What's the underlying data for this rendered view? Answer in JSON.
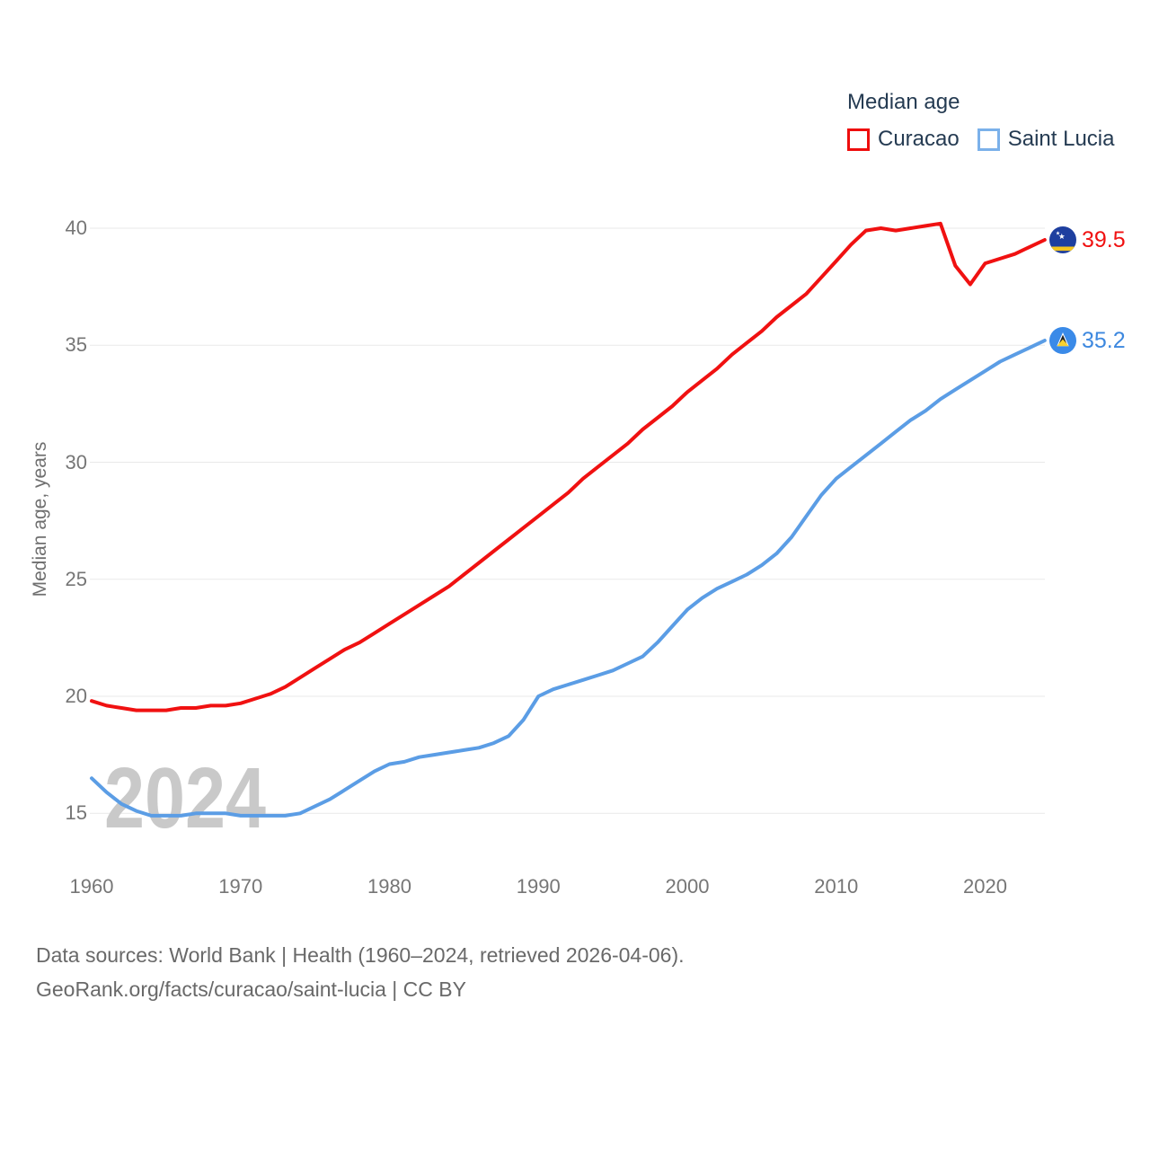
{
  "legend": {
    "title": "Median age",
    "items": [
      {
        "label": "Curacao"
      },
      {
        "label": "Saint Lucia"
      }
    ]
  },
  "watermark": "2024",
  "footer": {
    "line1": "Data sources: World Bank | Health (1960–2024, retrieved 2026-04-06).",
    "line2": "GeoRank.org/facts/curacao/saint-lucia | CC BY"
  },
  "colors": {
    "gridline": "#e9e9e9",
    "watermark": "#c9c9c9",
    "tick_text": "#767676",
    "axis_title_text": "#6f6f6f",
    "legend_text": "#253b52",
    "footer_text": "#696969"
  },
  "chart_data": {
    "type": "line",
    "title": "Median age",
    "xlabel": "",
    "ylabel": "Median age, years",
    "grid": "horizontal",
    "legend_position": "top-right",
    "xlim": [
      1960,
      2024
    ],
    "ylim": [
      15,
      40
    ],
    "yticks": [
      15,
      20,
      25,
      30,
      35,
      40
    ],
    "xticks": [
      1960,
      1970,
      1980,
      1990,
      2000,
      2010,
      2020
    ],
    "x": [
      1960,
      1961,
      1962,
      1963,
      1964,
      1965,
      1966,
      1967,
      1968,
      1969,
      1970,
      1971,
      1972,
      1973,
      1974,
      1975,
      1976,
      1977,
      1978,
      1979,
      1980,
      1981,
      1982,
      1983,
      1984,
      1985,
      1986,
      1987,
      1988,
      1989,
      1990,
      1991,
      1992,
      1993,
      1994,
      1995,
      1996,
      1997,
      1998,
      1999,
      2000,
      2001,
      2002,
      2003,
      2004,
      2005,
      2006,
      2007,
      2008,
      2009,
      2010,
      2011,
      2012,
      2013,
      2014,
      2015,
      2016,
      2017,
      2018,
      2019,
      2020,
      2021,
      2022,
      2023,
      2024
    ],
    "series": [
      {
        "name": "Curacao",
        "color": "#f01111",
        "swatch_color": "#ee0d0d",
        "label_color": "#f01111",
        "end_label": "39.5",
        "values": [
          19.8,
          19.6,
          19.5,
          19.4,
          19.4,
          19.4,
          19.5,
          19.5,
          19.6,
          19.6,
          19.7,
          19.9,
          20.1,
          20.4,
          20.8,
          21.2,
          21.6,
          22.0,
          22.3,
          22.7,
          23.1,
          23.5,
          23.9,
          24.3,
          24.7,
          25.2,
          25.7,
          26.2,
          26.7,
          27.2,
          27.7,
          28.2,
          28.7,
          29.3,
          29.8,
          30.3,
          30.8,
          31.4,
          31.9,
          32.4,
          33.0,
          33.5,
          34.0,
          34.6,
          35.1,
          35.6,
          36.2,
          36.7,
          37.2,
          37.9,
          38.6,
          39.3,
          39.9,
          40.0,
          39.9,
          40.0,
          40.1,
          40.2,
          38.4,
          37.6,
          38.5,
          38.7,
          38.9,
          39.2,
          39.5
        ]
      },
      {
        "name": "Saint Lucia",
        "color": "#5b9de5",
        "swatch_color": "#7bb1ea",
        "label_color": "#3d88df",
        "end_label": "35.2",
        "values": [
          16.5,
          15.9,
          15.4,
          15.1,
          14.9,
          14.9,
          14.9,
          15.0,
          15.0,
          15.0,
          14.9,
          14.9,
          14.9,
          14.9,
          15.0,
          15.3,
          15.6,
          16.0,
          16.4,
          16.8,
          17.1,
          17.2,
          17.4,
          17.5,
          17.6,
          17.7,
          17.8,
          18.0,
          18.3,
          19.0,
          20.0,
          20.3,
          20.5,
          20.7,
          20.9,
          21.1,
          21.4,
          21.7,
          22.3,
          23.0,
          23.7,
          24.2,
          24.6,
          24.9,
          25.2,
          25.6,
          26.1,
          26.8,
          27.7,
          28.6,
          29.3,
          29.8,
          30.3,
          30.8,
          31.3,
          31.8,
          32.2,
          32.7,
          33.1,
          33.5,
          33.9,
          34.3,
          34.6,
          34.9,
          35.2
        ]
      }
    ]
  }
}
